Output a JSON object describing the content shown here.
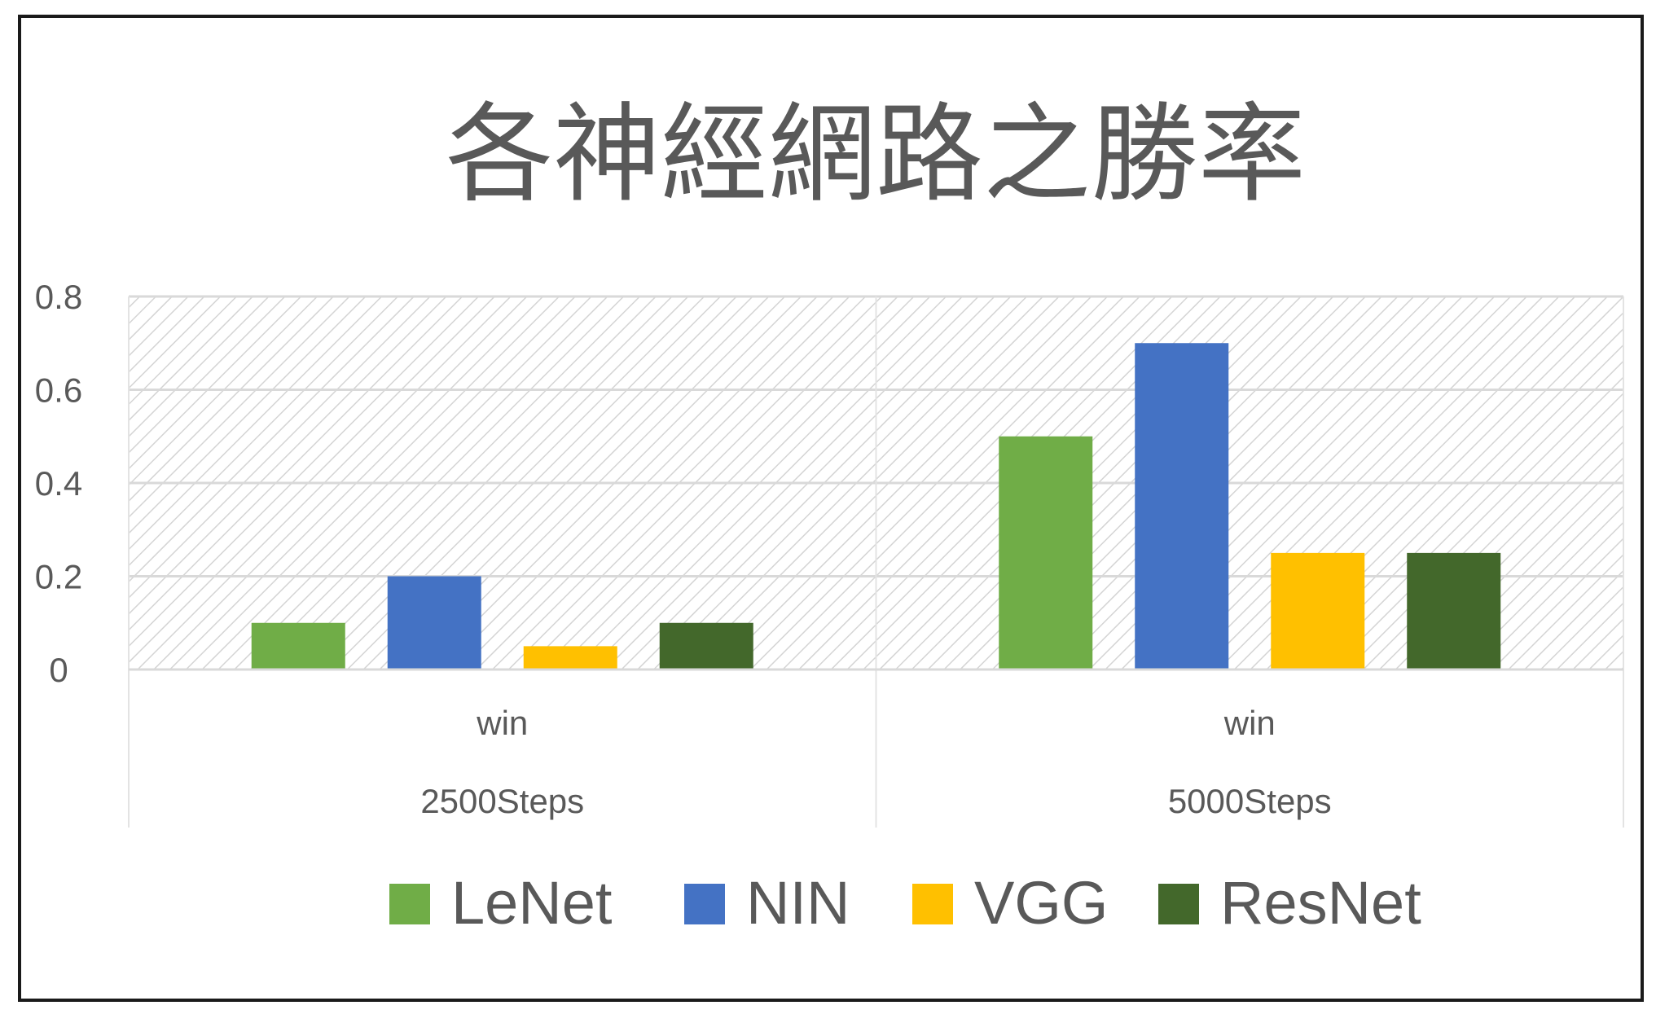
{
  "chart_data": {
    "type": "bar",
    "title": "各神經網路之勝率",
    "xlabel": "",
    "ylabel": "",
    "ylim": [
      0,
      0.8
    ],
    "yticks": [
      "0",
      "0.2",
      "0.4",
      "0.6",
      "0.8"
    ],
    "categories": [
      {
        "inner": "win",
        "outer": "2500Steps"
      },
      {
        "inner": "win",
        "outer": "5000Steps"
      }
    ],
    "series": [
      {
        "name": "LeNet",
        "color": "#70ad47",
        "values": [
          0.1,
          0.5
        ]
      },
      {
        "name": "NIN",
        "color": "#4472c4",
        "values": [
          0.2,
          0.7
        ]
      },
      {
        "name": "VGG",
        "color": "#ffc000",
        "values": [
          0.05,
          0.25
        ]
      },
      {
        "name": "ResNet",
        "color": "#43682b",
        "values": [
          0.1,
          0.25
        ]
      }
    ],
    "grid": true,
    "legend_position": "bottom"
  }
}
